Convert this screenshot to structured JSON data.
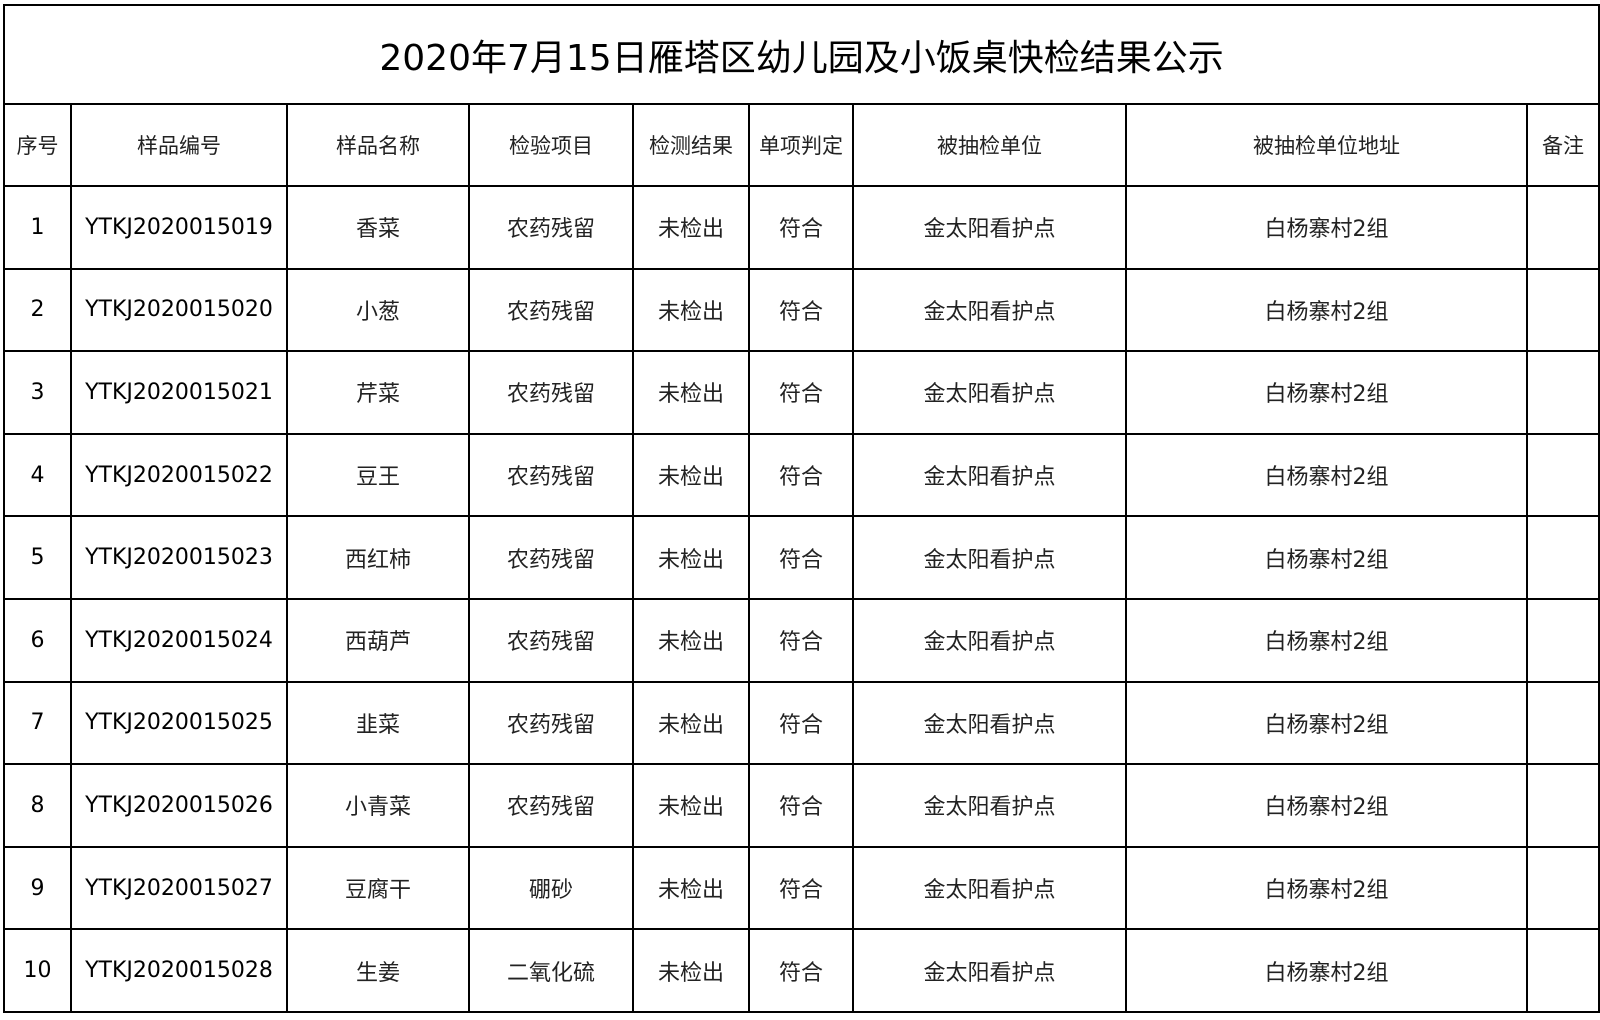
{
  "title": "2020年7月15日雁塔区幼儿园及小饭桌快检结果公示",
  "headers": [
    "序号",
    "样品编号",
    "样品名称",
    "检验项目",
    "检测结果",
    "单项判定",
    "被抽检单位",
    "被抽检单位地址",
    "备注"
  ],
  "rows": [
    [
      "1",
      "YTKJ2020015019",
      "香菜",
      "农药残留",
      "未检出",
      "符合",
      "金太阳看护点",
      "白杨寨村2组",
      ""
    ],
    [
      "2",
      "YTKJ2020015020",
      "小葱",
      "农药残留",
      "未检出",
      "符合",
      "金太阳看护点",
      "白杨寨村2组",
      ""
    ],
    [
      "3",
      "YTKJ2020015021",
      "芹菜",
      "农药残留",
      "未检出",
      "符合",
      "金太阳看护点",
      "白杨寨村2组",
      ""
    ],
    [
      "4",
      "YTKJ2020015022",
      "豆王",
      "农药残留",
      "未检出",
      "符合",
      "金太阳看护点",
      "白杨寨村2组",
      ""
    ],
    [
      "5",
      "YTKJ2020015023",
      "西红柿",
      "农药残留",
      "未检出",
      "符合",
      "金太阳看护点",
      "白杨寨村2组",
      ""
    ],
    [
      "6",
      "YTKJ2020015024",
      "西葫芦",
      "农药残留",
      "未检出",
      "符合",
      "金太阳看护点",
      "白杨寨村2组",
      ""
    ],
    [
      "7",
      "YTKJ2020015025",
      "韭菜",
      "农药残留",
      "未检出",
      "符合",
      "金太阳看护点",
      "白杨寨村2组",
      ""
    ],
    [
      "8",
      "YTKJ2020015026",
      "小青菜",
      "农药残留",
      "未检出",
      "符合",
      "金太阳看护点",
      "白杨寨村2组",
      ""
    ],
    [
      "9",
      "YTKJ2020015027",
      "豆腐干",
      "硼砂",
      "未检出",
      "符合",
      "金太阳看护点",
      "白杨寨村2组",
      ""
    ],
    [
      "10",
      "YTKJ2020015028",
      "生姜",
      "二氧化硫",
      "未检出",
      "符合",
      "金太阳看护点",
      "白杨寨村2组",
      ""
    ]
  ]
}
